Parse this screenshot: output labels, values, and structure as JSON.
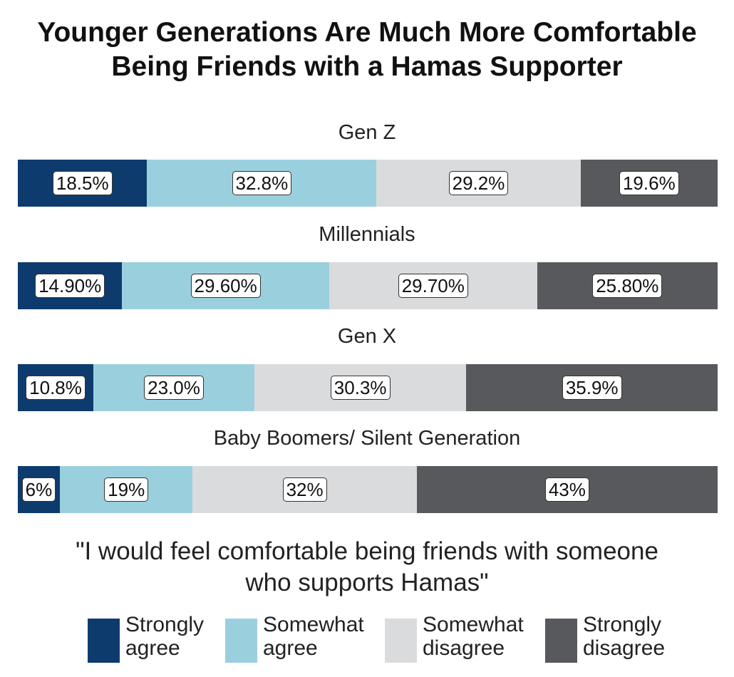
{
  "title_lines": [
    "Younger Generations Are Much More Comfortable",
    "Being Friends with a Hamas Supporter"
  ],
  "caption_lines": [
    "\"I would feel comfortable being friends with someone",
    "who supports Hamas\""
  ],
  "colors": {
    "strongly_agree": "#0d3b6e",
    "somewhat_agree": "#9ad0de",
    "somewhat_disagree": "#dadbdd",
    "strongly_disagree": "#58595d"
  },
  "chart_data": {
    "type": "bar",
    "stacked": true,
    "orientation": "horizontal",
    "categories": [
      "Gen Z",
      "Millennials",
      "Gen X",
      "Baby Boomers/ Silent Generation"
    ],
    "series": [
      {
        "name": "Strongly agree",
        "values": [
          18.5,
          14.9,
          10.8,
          6
        ],
        "labels": [
          "18.5%",
          "14.90%",
          "10.8%",
          "6%"
        ]
      },
      {
        "name": "Somewhat agree",
        "values": [
          32.8,
          29.6,
          23.0,
          19
        ],
        "labels": [
          "32.8%",
          "29.60%",
          "23.0%",
          "19%"
        ]
      },
      {
        "name": "Somewhat disagree",
        "values": [
          29.2,
          29.7,
          30.3,
          32
        ],
        "labels": [
          "29.2%",
          "29.70%",
          "30.3%",
          "32%"
        ]
      },
      {
        "name": "Strongly disagree",
        "values": [
          19.6,
          25.8,
          35.9,
          43
        ],
        "labels": [
          "19.6%",
          "25.80%",
          "35.9%",
          "43%"
        ]
      }
    ],
    "legend": {
      "position": "bottom",
      "entries": [
        {
          "line1": "Strongly",
          "line2": "agree"
        },
        {
          "line1": "Somewhat",
          "line2": "agree"
        },
        {
          "line1": "Somewhat",
          "line2": "disagree"
        },
        {
          "line1": "Strongly",
          "line2": "disagree"
        }
      ]
    }
  }
}
